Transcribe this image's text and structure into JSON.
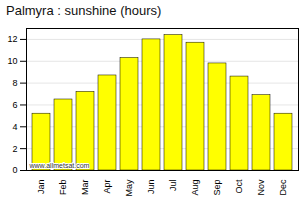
{
  "chart_data": {
    "type": "bar",
    "title": "Palmyra : sunshine (hours)",
    "categories": [
      "Jan",
      "Feb",
      "Mar",
      "Apr",
      "May",
      "Jun",
      "Jul",
      "Aug",
      "Sep",
      "Oct",
      "Nov",
      "Dec"
    ],
    "values": [
      5.2,
      6.5,
      7.2,
      8.7,
      10.3,
      12.0,
      12.4,
      11.7,
      9.8,
      8.6,
      6.9,
      5.2
    ],
    "color": "#FFFF00",
    "ylim": [
      0,
      13
    ],
    "yticks": [
      0,
      2,
      4,
      6,
      8,
      10,
      12
    ],
    "grid": true,
    "annotations": [
      "www.allmetsat.com"
    ]
  }
}
